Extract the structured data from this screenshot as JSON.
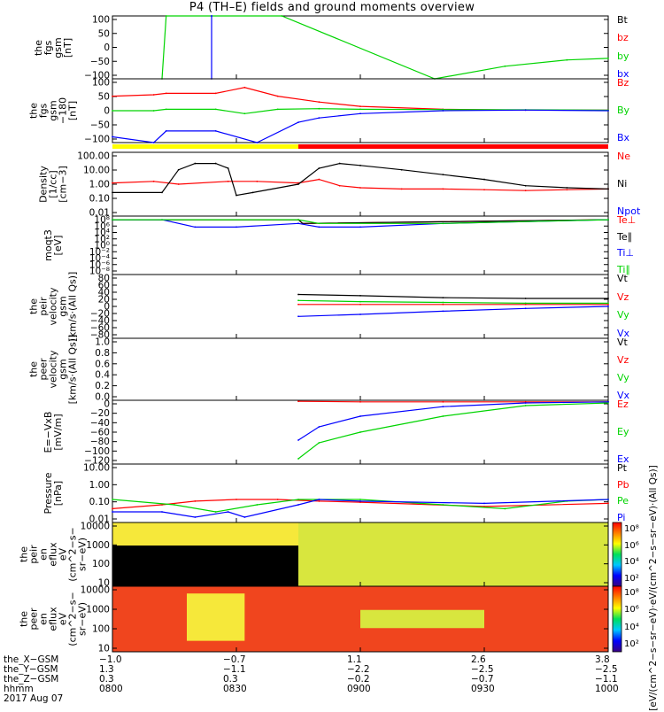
{
  "title": "P4 (TH–E) fields and ground moments overview",
  "colors": {
    "black": "#000000",
    "red": "#ff0000",
    "green": "#00d400",
    "blue": "#0000ff",
    "yellow": "#ffff00"
  },
  "panels": [
    {
      "id": "fgs",
      "ylabel": [
        "the",
        "fgs",
        "gsm",
        "[nT]"
      ],
      "yticks": [
        "100",
        "50",
        "0",
        "−50",
        "−100"
      ],
      "legend": [
        {
          "text": "Bt",
          "color": "black"
        },
        {
          "text": "bz",
          "color": "red"
        },
        {
          "text": "by",
          "color": "green"
        },
        {
          "text": "bx",
          "color": "blue"
        }
      ]
    },
    {
      "id": "fgs_corr",
      "ylabel": [
        "the",
        "fgs",
        "gsm",
        "−180",
        "[nT]"
      ],
      "yticks": [
        "100",
        "50",
        "0",
        "−50",
        "−100"
      ],
      "legend": [
        {
          "text": "Bz",
          "color": "red"
        },
        {
          "text": "By",
          "color": "green"
        },
        {
          "text": "Bx",
          "color": "blue"
        }
      ]
    },
    {
      "id": "density",
      "ylabel": [
        "Density",
        "[1/cc]",
        "[cm−3]"
      ],
      "yticks": [
        "100.00",
        "10.00",
        "1.00",
        "0.10",
        "0.01"
      ],
      "legend": [
        {
          "text": "Ne",
          "color": "red"
        },
        {
          "text": "Ni",
          "color": "black"
        },
        {
          "text": "Npot",
          "color": "blue"
        }
      ]
    },
    {
      "id": "temp",
      "ylabel": [
        "moqt3",
        "[eV]"
      ],
      "yticks": [
        "10⁸",
        "10⁶",
        "10⁴",
        "10²",
        "10⁰",
        "10⁻²",
        "10⁻⁴",
        "10⁻⁶",
        "10⁻⁸"
      ],
      "legend": [
        {
          "text": "Te⊥",
          "color": "red"
        },
        {
          "text": "Te∥",
          "color": "black"
        },
        {
          "text": "Ti⊥",
          "color": "blue"
        },
        {
          "text": "Ti∥",
          "color": "green"
        }
      ]
    },
    {
      "id": "vi",
      "ylabel": [
        "the",
        "peir",
        "velocity",
        "gsm",
        "[km/s·(All Qs)]"
      ],
      "yticks": [
        "80",
        "60",
        "40",
        "20",
        "0",
        "−20",
        "−40",
        "−60",
        "−80"
      ],
      "legend": [
        {
          "text": "Vt",
          "color": "black"
        },
        {
          "text": "Vz",
          "color": "red"
        },
        {
          "text": "Vy",
          "color": "green"
        },
        {
          "text": "Vx",
          "color": "blue"
        }
      ]
    },
    {
      "id": "ve",
      "ylabel": [
        "the",
        "peer",
        "velocity",
        "gsm",
        "[km/s·(All Qs)]"
      ],
      "yticks": [
        "1.0",
        "0.8",
        "0.6",
        "0.4",
        "0.2",
        "0.0"
      ],
      "legend": [
        {
          "text": "Vt",
          "color": "black"
        },
        {
          "text": "Vz",
          "color": "red"
        },
        {
          "text": "Vy",
          "color": "green"
        },
        {
          "text": "Vx",
          "color": "blue"
        }
      ]
    },
    {
      "id": "efield",
      "ylabel": [
        "E=−VxB",
        "[mV/m]"
      ],
      "yticks": [
        "0",
        "−20",
        "−40",
        "−60",
        "−80",
        "−100",
        "−120"
      ],
      "legend": [
        {
          "text": "Ez",
          "color": "red"
        },
        {
          "text": "Ey",
          "color": "green"
        },
        {
          "text": "Ex",
          "color": "blue"
        }
      ]
    },
    {
      "id": "pressure",
      "ylabel": [
        "Pressure",
        "[nPa]"
      ],
      "yticks": [
        "10.00",
        "1.00",
        "0.10",
        "0.01"
      ],
      "legend": [
        {
          "text": "Pt",
          "color": "black"
        },
        {
          "text": "Pb",
          "color": "red"
        },
        {
          "text": "Pe",
          "color": "green"
        },
        {
          "text": "Pi",
          "color": "blue"
        }
      ]
    },
    {
      "id": "ion_spec",
      "ylabel": [
        "the",
        "peir",
        "en",
        "eflux",
        "eV",
        "(cm^2−s−",
        "sr−eV)"
      ],
      "yticks": [
        "10000",
        "1000",
        "100",
        "10"
      ]
    },
    {
      "id": "elec_spec",
      "ylabel": [
        "the",
        "peer",
        "en",
        "eflux",
        "eV",
        "(cm^2−s−",
        "sr−eV)"
      ],
      "yticks": [
        "10000",
        "1000",
        "100",
        "10"
      ]
    }
  ],
  "colorbar": {
    "ticks": [
      "10⁸",
      "10⁶",
      "10⁴",
      "10²"
    ],
    "label": "[eV/(cm^2−s−sr−eV)·eV/(cm^2−s−sr−eV)·(All Qs)]"
  },
  "footer": {
    "rows": [
      {
        "label": "the_X−GSM",
        "values": [
          "−1.0",
          "−0.7",
          "1.1",
          "2.6",
          "3.8"
        ]
      },
      {
        "label": "the_Y−GSM",
        "values": [
          "1.3",
          "−1.1",
          "−2.2",
          "−2.5",
          "−2.5"
        ]
      },
      {
        "label": "the_Z−GSM",
        "values": [
          "0.3",
          "0.3",
          "−0.2",
          "−0.7",
          "−1.1"
        ]
      },
      {
        "label": "hhmm",
        "values": [
          "0800",
          "0830",
          "0900",
          "0930",
          "1000"
        ]
      }
    ],
    "date": "2017 Aug 07"
  },
  "chart_data": [
    {
      "type": "line",
      "name": "fgs",
      "x_unit": "hhmm",
      "ylim": [
        -100,
        100
      ],
      "series": [
        {
          "name": "by",
          "color": "green",
          "x": [
            "0812",
            "0813",
            "0841",
            "0918",
            "0935",
            "0950",
            "1000"
          ],
          "y": [
            -100,
            100,
            100,
            -100,
            -60,
            -40,
            -35
          ]
        },
        {
          "name": "bx",
          "color": "blue",
          "x": [
            "0824",
            "0824",
            "0824"
          ],
          "y": [
            100,
            -100,
            100
          ]
        }
      ]
    },
    {
      "type": "line",
      "name": "fgs_corr",
      "x_unit": "hhmm",
      "ylim": [
        -120,
        100
      ],
      "series": [
        {
          "name": "Bz",
          "color": "red",
          "x": [
            "0800",
            "0810",
            "0813",
            "0825",
            "0832",
            "0840",
            "0850",
            "0900",
            "0920",
            "0940",
            "1000"
          ],
          "y": [
            40,
            45,
            50,
            50,
            70,
            40,
            20,
            5,
            -5,
            -8,
            -8
          ]
        },
        {
          "name": "By",
          "color": "green",
          "x": [
            "0800",
            "0810",
            "0813",
            "0825",
            "0832",
            "0840",
            "0850",
            "0900",
            "0920",
            "0940",
            "1000"
          ],
          "y": [
            -10,
            -10,
            -5,
            -5,
            -20,
            -5,
            -3,
            -5,
            -6,
            -7,
            -8
          ]
        },
        {
          "name": "Bx",
          "color": "blue",
          "x": [
            "0800",
            "0810",
            "0813",
            "0825",
            "0835",
            "0845",
            "0850",
            "0900",
            "0920",
            "0940",
            "1000"
          ],
          "y": [
            -100,
            -120,
            -80,
            -80,
            -120,
            -50,
            -35,
            -20,
            -10,
            -8,
            -10
          ]
        }
      ],
      "mode_bar": [
        {
          "from": "0800",
          "to": "0845",
          "color": "yellow"
        },
        {
          "from": "0845",
          "to": "1000",
          "color": "red"
        }
      ]
    },
    {
      "type": "line",
      "name": "density",
      "x_unit": "hhmm",
      "yscale": "log",
      "ylim": [
        0.01,
        100
      ],
      "series": [
        {
          "name": "Ne",
          "color": "red",
          "x": [
            "0800",
            "0810",
            "0816",
            "0828",
            "0835",
            "0845",
            "0850",
            "0855",
            "0900",
            "0910",
            "0920",
            "0930",
            "0940",
            "0950",
            "1000"
          ],
          "y": [
            1.2,
            1.5,
            1,
            1.5,
            1.5,
            1.2,
            2,
            0.8,
            0.6,
            0.5,
            0.5,
            0.45,
            0.4,
            0.45,
            0.5
          ]
        },
        {
          "name": "Ni",
          "color": "black",
          "x": [
            "0800",
            "0812",
            "0816",
            "0820",
            "0825",
            "0828",
            "0830",
            "0834",
            "0845",
            "0850",
            "0855",
            "0900",
            "0910",
            "0920",
            "0930",
            "0940",
            "0950",
            "1000"
          ],
          "y": [
            0.3,
            0.3,
            8,
            20,
            20,
            10,
            0.2,
            0.3,
            1,
            10,
            20,
            15,
            8,
            4,
            2,
            0.8,
            0.6,
            0.5
          ]
        }
      ]
    },
    {
      "type": "line",
      "name": "temp",
      "x_unit": "hhmm",
      "yscale": "log",
      "ylim": [
        1e-08,
        100000000.0
      ],
      "series": [
        {
          "name": "Te⊥",
          "color": "red",
          "x": [
            "0800",
            "0845",
            "0846",
            "1000"
          ],
          "y": [
            10000000,
            10000000,
            1000000,
            10000000
          ]
        },
        {
          "name": "Te∥",
          "color": "black",
          "x": [
            "0800",
            "0845",
            "0846",
            "1000"
          ],
          "y": [
            10000000,
            10000000,
            1000000,
            10000000
          ]
        },
        {
          "name": "Ti⊥",
          "color": "blue",
          "x": [
            "0800",
            "0812",
            "0820",
            "0830",
            "0845",
            "0850",
            "0900",
            "0920",
            "1000"
          ],
          "y": [
            10000000,
            10000000,
            100000,
            100000,
            1000000,
            100000,
            100000,
            1000000,
            10000000
          ]
        },
        {
          "name": "Ti∥",
          "color": "green",
          "x": [
            "0800",
            "0812",
            "0845",
            "0850",
            "0920",
            "1000"
          ],
          "y": [
            10000000,
            10000000,
            10000000,
            1000000,
            1000000,
            10000000
          ]
        }
      ]
    },
    {
      "type": "line",
      "name": "vi",
      "x_unit": "hhmm",
      "ylim": [
        -80,
        80
      ],
      "series": [
        {
          "name": "Vt",
          "color": "black",
          "x": [
            "0845",
            "0900",
            "0920",
            "0940",
            "1000"
          ],
          "y": [
            30,
            27,
            22,
            20,
            20
          ]
        },
        {
          "name": "Vz",
          "color": "red",
          "x": [
            "0845",
            "0900",
            "0920",
            "0940",
            "1000"
          ],
          "y": [
            5,
            5,
            5,
            5,
            5
          ]
        },
        {
          "name": "Vy",
          "color": "green",
          "x": [
            "0845",
            "0900",
            "0920",
            "0940",
            "1000"
          ],
          "y": [
            15,
            12,
            10,
            8,
            8
          ]
        },
        {
          "name": "Vx",
          "color": "blue",
          "x": [
            "0845",
            "0900",
            "0920",
            "0940",
            "1000"
          ],
          "y": [
            -25,
            -20,
            -12,
            -5,
            0
          ]
        }
      ]
    },
    {
      "type": "line",
      "name": "ve",
      "x_unit": "hhmm",
      "ylim": [
        0,
        1
      ],
      "series": []
    },
    {
      "type": "line",
      "name": "efield",
      "x_unit": "hhmm",
      "ylim": [
        -120,
        0
      ],
      "series": [
        {
          "name": "Ez",
          "color": "red",
          "x": [
            "0845",
            "0900",
            "0920",
            "0940",
            "1000"
          ],
          "y": [
            -2,
            -3,
            -3,
            -3,
            -3
          ]
        },
        {
          "name": "Ey",
          "color": "green",
          "x": [
            "0845",
            "0850",
            "0900",
            "0920",
            "0940",
            "1000"
          ],
          "y": [
            -110,
            -80,
            -60,
            -30,
            -10,
            -5
          ]
        },
        {
          "name": "Ex",
          "color": "blue",
          "x": [
            "0845",
            "0850",
            "0900",
            "0920",
            "0940",
            "1000"
          ],
          "y": [
            -75,
            -50,
            -30,
            -12,
            -5,
            -3
          ]
        }
      ]
    },
    {
      "type": "line",
      "name": "pressure",
      "x_unit": "hhmm",
      "yscale": "log",
      "ylim": [
        0.005,
        10
      ],
      "series": [
        {
          "name": "Pb",
          "color": "red",
          "x": [
            "0800",
            "0812",
            "0820",
            "0830",
            "0840",
            "0850",
            "0900",
            "0930",
            "1000"
          ],
          "y": [
            0.03,
            0.05,
            0.08,
            0.1,
            0.1,
            0.08,
            0.07,
            0.04,
            0.06
          ]
        },
        {
          "name": "Pe",
          "color": "green",
          "x": [
            "0800",
            "0815",
            "0825",
            "0835",
            "0845",
            "0850",
            "0900",
            "0920",
            "0935",
            "0950",
            "1000"
          ],
          "y": [
            0.1,
            0.05,
            0.02,
            0.05,
            0.1,
            0.1,
            0.1,
            0.05,
            0.03,
            0.08,
            0.1
          ]
        },
        {
          "name": "Pi",
          "color": "blue",
          "x": [
            "0800",
            "0812",
            "0820",
            "0828",
            "0832",
            "0845",
            "0850",
            "0900",
            "0930",
            "1000"
          ],
          "y": [
            0.02,
            0.02,
            0.01,
            0.02,
            0.01,
            0.05,
            0.1,
            0.08,
            0.06,
            0.1
          ]
        }
      ]
    },
    {
      "type": "heatmap",
      "name": "ion_spec",
      "x_unit": "hhmm",
      "yscale": "log",
      "ylim": [
        5,
        20000
      ],
      "regions": [
        {
          "from": "0800",
          "to": "0845",
          "emin": 1000,
          "emax": 20000,
          "level": "yellow"
        },
        {
          "from": "0800",
          "to": "0845",
          "emin": 5,
          "emax": 1000,
          "level": "black"
        },
        {
          "from": "0845",
          "to": "1000",
          "emin": 5,
          "emax": 20000,
          "level": "yellow-green"
        }
      ]
    },
    {
      "type": "heatmap",
      "name": "elec_spec",
      "x_unit": "hhmm",
      "yscale": "log",
      "ylim": [
        5,
        20000
      ],
      "regions": [
        {
          "from": "0800",
          "to": "1000",
          "emin": 5,
          "emax": 20000,
          "level": "orange-red"
        },
        {
          "from": "0818",
          "to": "0832",
          "emin": 20,
          "emax": 8000,
          "level": "yellow"
        },
        {
          "from": "0900",
          "to": "0930",
          "emin": 100,
          "emax": 1000,
          "level": "yellow-green"
        }
      ]
    }
  ]
}
